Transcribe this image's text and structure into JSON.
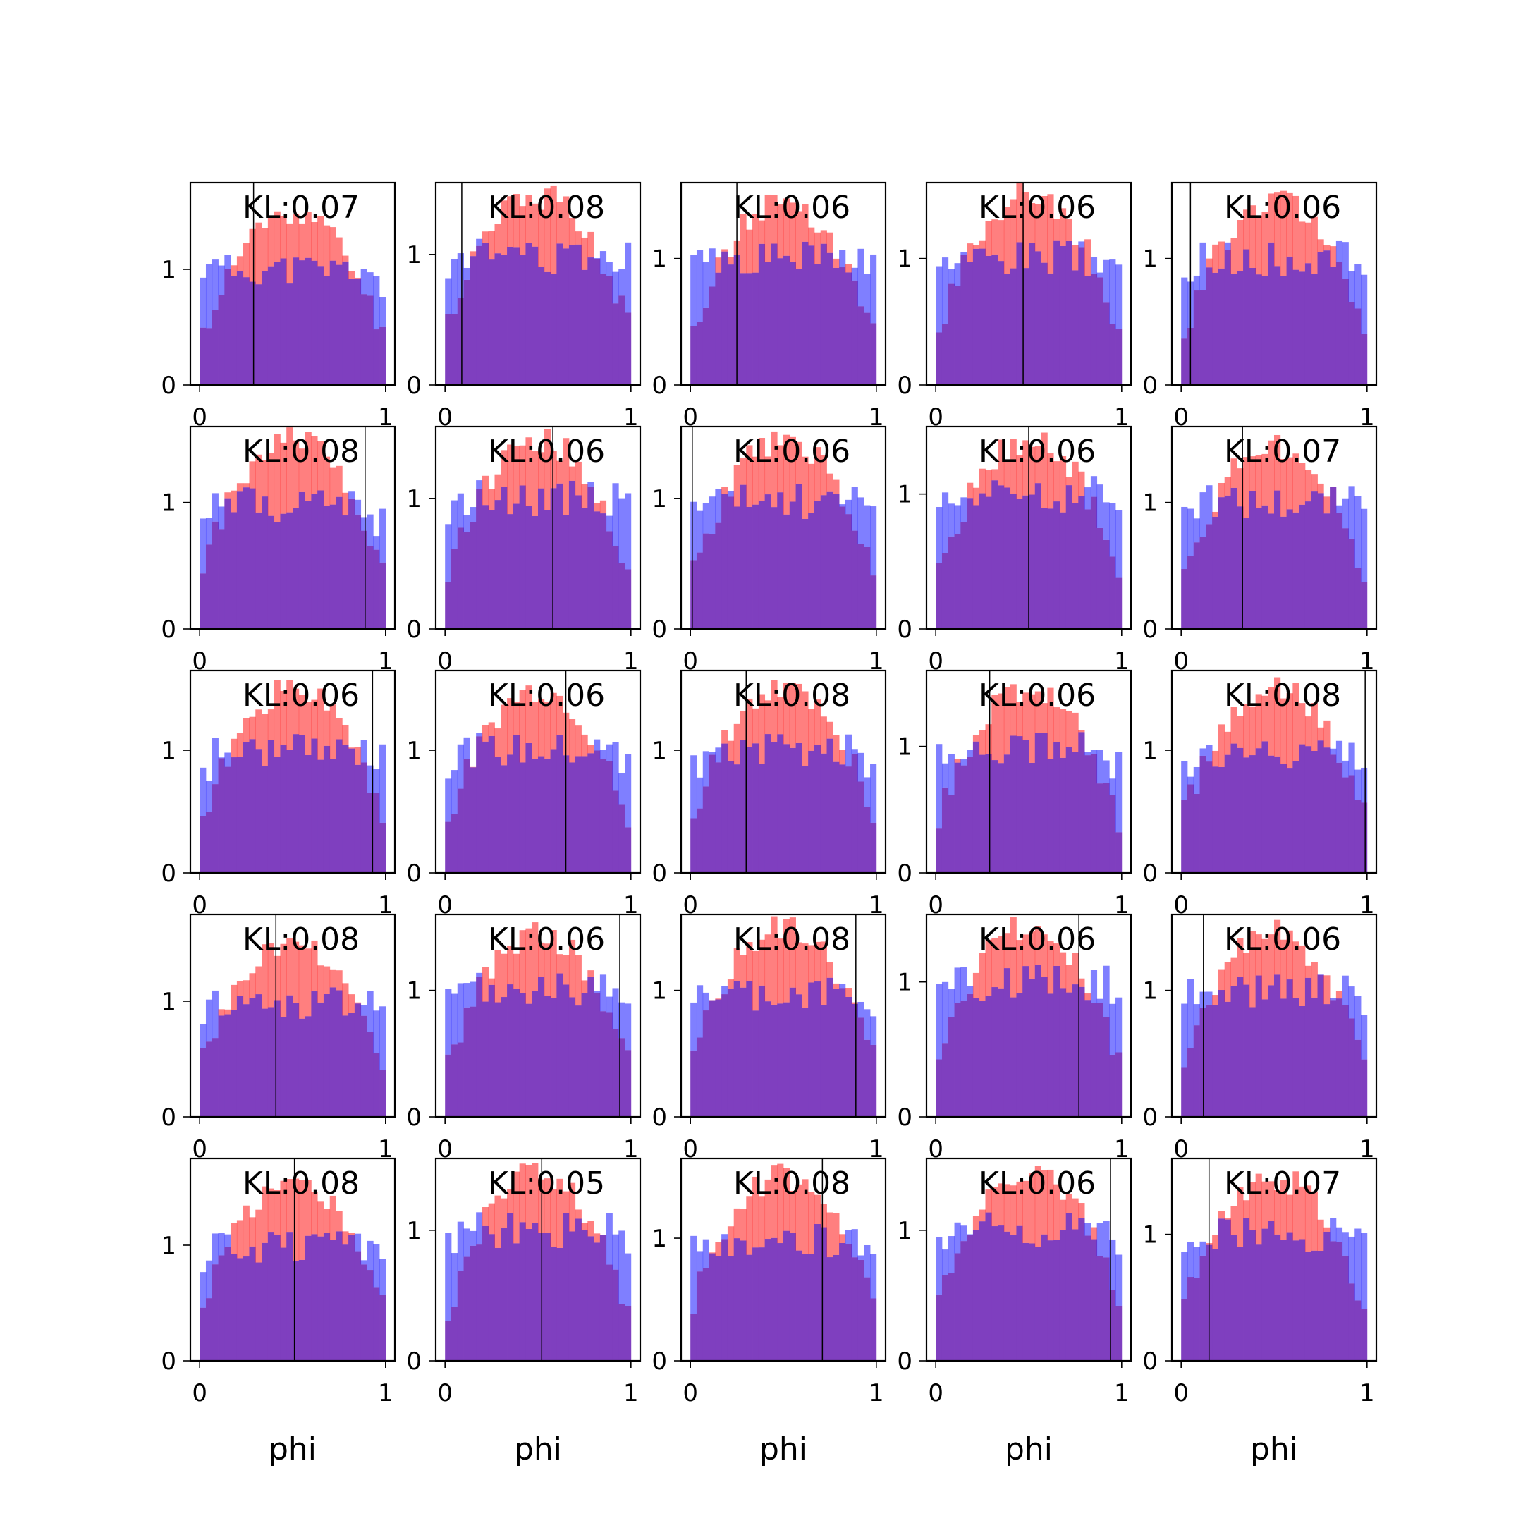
{
  "figure": {
    "rows": 5,
    "cols": 5,
    "xlabel": "phi",
    "xticks": [
      0,
      1
    ],
    "xtick_labels": [
      "0",
      "1"
    ],
    "yticks": [
      0,
      1
    ],
    "ytick_labels": [
      "0",
      "1"
    ],
    "colors": {
      "red_series": "#ff0000",
      "blue_series": "#0000ff",
      "overlap": "#7f3fbf",
      "marker_line": "#000000",
      "axes": "#000000",
      "background": "#ffffff"
    }
  },
  "chart_data": [
    {
      "type": "bar",
      "annotation": "KL:0.07",
      "ylim": [
        0,
        1.75
      ],
      "xlim": [
        -0.05,
        1.05
      ],
      "vline": 0.29,
      "red_peak": 1.5,
      "red_edge": 0.33,
      "blue_base": 1.0,
      "seed": 11
    },
    {
      "type": "bar",
      "annotation": "KL:0.08",
      "ylim": [
        0,
        1.55
      ],
      "xlim": [
        -0.05,
        1.05
      ],
      "vline": 0.09,
      "red_peak": 1.45,
      "red_edge": 0.42,
      "blue_base": 0.98,
      "seed": 12
    },
    {
      "type": "bar",
      "annotation": "KL:0.06",
      "ylim": [
        0,
        1.6
      ],
      "xlim": [
        -0.05,
        1.05
      ],
      "vline": 0.25,
      "red_peak": 1.45,
      "red_edge": 0.38,
      "blue_base": 1.0,
      "seed": 13
    },
    {
      "type": "bar",
      "annotation": "KL:0.06",
      "ylim": [
        0,
        1.6
      ],
      "xlim": [
        -0.05,
        1.05
      ],
      "vline": 0.47,
      "red_peak": 1.5,
      "red_edge": 0.36,
      "blue_base": 1.0,
      "seed": 14
    },
    {
      "type": "bar",
      "annotation": "KL:0.06",
      "ylim": [
        0,
        1.6
      ],
      "xlim": [
        -0.05,
        1.05
      ],
      "vline": 0.05,
      "red_peak": 1.45,
      "red_edge": 0.35,
      "blue_base": 1.0,
      "seed": 15
    },
    {
      "type": "bar",
      "annotation": "KL:0.08",
      "ylim": [
        0,
        1.6
      ],
      "xlim": [
        -0.05,
        1.05
      ],
      "vline": 0.89,
      "red_peak": 1.5,
      "red_edge": 0.42,
      "blue_base": 0.98,
      "seed": 21
    },
    {
      "type": "bar",
      "annotation": "KL:0.06",
      "ylim": [
        0,
        1.55
      ],
      "xlim": [
        -0.05,
        1.05
      ],
      "vline": 0.58,
      "red_peak": 1.45,
      "red_edge": 0.38,
      "blue_base": 1.0,
      "seed": 22
    },
    {
      "type": "bar",
      "annotation": "KL:0.06",
      "ylim": [
        0,
        1.55
      ],
      "xlim": [
        -0.05,
        1.05
      ],
      "vline": 0.01,
      "red_peak": 1.45,
      "red_edge": 0.36,
      "blue_base": 0.98,
      "seed": 23
    },
    {
      "type": "bar",
      "annotation": "KL:0.06",
      "ylim": [
        0,
        1.5
      ],
      "xlim": [
        -0.05,
        1.05
      ],
      "vline": 0.5,
      "red_peak": 1.4,
      "red_edge": 0.36,
      "blue_base": 1.0,
      "seed": 24
    },
    {
      "type": "bar",
      "annotation": "KL:0.07",
      "ylim": [
        0,
        1.6
      ],
      "xlim": [
        -0.05,
        1.05
      ],
      "vline": 0.33,
      "red_peak": 1.45,
      "red_edge": 0.38,
      "blue_base": 1.0,
      "seed": 25
    },
    {
      "type": "bar",
      "annotation": "KL:0.06",
      "ylim": [
        0,
        1.65
      ],
      "xlim": [
        -0.05,
        1.05
      ],
      "vline": 0.93,
      "red_peak": 1.5,
      "red_edge": 0.36,
      "blue_base": 1.0,
      "seed": 31
    },
    {
      "type": "bar",
      "annotation": "KL:0.06",
      "ylim": [
        0,
        1.65
      ],
      "xlim": [
        -0.05,
        1.05
      ],
      "vline": 0.65,
      "red_peak": 1.5,
      "red_edge": 0.35,
      "blue_base": 1.0,
      "seed": 32
    },
    {
      "type": "bar",
      "annotation": "KL:0.08",
      "ylim": [
        0,
        1.65
      ],
      "xlim": [
        -0.05,
        1.05
      ],
      "vline": 0.3,
      "red_peak": 1.5,
      "red_edge": 0.42,
      "blue_base": 1.0,
      "seed": 33
    },
    {
      "type": "bar",
      "annotation": "KL:0.06",
      "ylim": [
        0,
        1.6
      ],
      "xlim": [
        -0.05,
        1.05
      ],
      "vline": 0.29,
      "red_peak": 1.45,
      "red_edge": 0.36,
      "blue_base": 1.0,
      "seed": 34
    },
    {
      "type": "bar",
      "annotation": "KL:0.08",
      "ylim": [
        0,
        1.65
      ],
      "xlim": [
        -0.05,
        1.05
      ],
      "vline": 0.99,
      "red_peak": 1.5,
      "red_edge": 0.42,
      "blue_base": 0.98,
      "seed": 35
    },
    {
      "type": "bar",
      "annotation": "KL:0.08",
      "ylim": [
        0,
        1.75
      ],
      "xlim": [
        -0.05,
        1.05
      ],
      "vline": 0.41,
      "red_peak": 1.5,
      "red_edge": 0.42,
      "blue_base": 0.98,
      "seed": 41
    },
    {
      "type": "bar",
      "annotation": "KL:0.06",
      "ylim": [
        0,
        1.6
      ],
      "xlim": [
        -0.05,
        1.05
      ],
      "vline": 0.94,
      "red_peak": 1.45,
      "red_edge": 0.35,
      "blue_base": 1.0,
      "seed": 42
    },
    {
      "type": "bar",
      "annotation": "KL:0.08",
      "ylim": [
        0,
        1.6
      ],
      "xlim": [
        -0.05,
        1.05
      ],
      "vline": 0.89,
      "red_peak": 1.5,
      "red_edge": 0.42,
      "blue_base": 0.98,
      "seed": 43
    },
    {
      "type": "bar",
      "annotation": "KL:0.06",
      "ylim": [
        0,
        1.5
      ],
      "xlim": [
        -0.05,
        1.05
      ],
      "vline": 0.77,
      "red_peak": 1.4,
      "red_edge": 0.36,
      "blue_base": 1.0,
      "seed": 44
    },
    {
      "type": "bar",
      "annotation": "KL:0.06",
      "ylim": [
        0,
        1.6
      ],
      "xlim": [
        -0.05,
        1.05
      ],
      "vline": 0.12,
      "red_peak": 1.45,
      "red_edge": 0.36,
      "blue_base": 1.0,
      "seed": 45
    },
    {
      "type": "bar",
      "annotation": "KL:0.08",
      "ylim": [
        0,
        1.75
      ],
      "xlim": [
        -0.05,
        1.05
      ],
      "vline": 0.51,
      "red_peak": 1.55,
      "red_edge": 0.42,
      "blue_base": 0.98,
      "seed": 51
    },
    {
      "type": "bar",
      "annotation": "KL:0.05",
      "ylim": [
        0,
        1.55
      ],
      "xlim": [
        -0.05,
        1.05
      ],
      "vline": 0.52,
      "red_peak": 1.45,
      "red_edge": 0.3,
      "blue_base": 1.0,
      "seed": 52
    },
    {
      "type": "bar",
      "annotation": "KL:0.08",
      "ylim": [
        0,
        1.65
      ],
      "xlim": [
        -0.05,
        1.05
      ],
      "vline": 0.71,
      "red_peak": 1.5,
      "red_edge": 0.42,
      "blue_base": 0.98,
      "seed": 53
    },
    {
      "type": "bar",
      "annotation": "KL:0.06",
      "ylim": [
        0,
        1.55
      ],
      "xlim": [
        -0.05,
        1.05
      ],
      "vline": 0.94,
      "red_peak": 1.45,
      "red_edge": 0.36,
      "blue_base": 1.0,
      "seed": 54
    },
    {
      "type": "bar",
      "annotation": "KL:0.07",
      "ylim": [
        0,
        1.6
      ],
      "xlim": [
        -0.05,
        1.05
      ],
      "vline": 0.15,
      "red_peak": 1.45,
      "red_edge": 0.38,
      "blue_base": 1.0,
      "seed": 55
    }
  ]
}
